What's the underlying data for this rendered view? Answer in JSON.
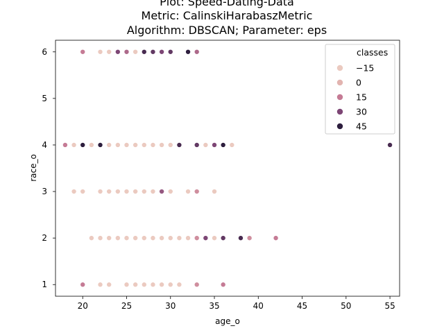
{
  "chart_data": {
    "type": "scatter",
    "title_lines": [
      "Plot: Speed-Dating-Data",
      "Metric: CalinskiHarabaszMetric",
      "Algorithm: DBSCAN; Parameter: eps"
    ],
    "xlabel": "age_o",
    "ylabel": "race_o",
    "xlim": [
      16.9,
      56.1
    ],
    "ylim": [
      0.75,
      6.25
    ],
    "xticks": [
      20,
      25,
      30,
      35,
      40,
      45,
      50,
      55
    ],
    "yticks": [
      1,
      2,
      3,
      4,
      5,
      6
    ],
    "grid": false,
    "legend": {
      "title": "classes",
      "placement": "top-right",
      "entries": [
        {
          "label": "−15",
          "value": -15,
          "color": "#ebcac0"
        },
        {
          "label": "0",
          "value": 0,
          "color": "#e2b4b0"
        },
        {
          "label": "15",
          "value": 15,
          "color": "#c57b95"
        },
        {
          "label": "30",
          "value": 30,
          "color": "#7d4675"
        },
        {
          "label": "45",
          "value": 45,
          "color": "#2d1e3e"
        }
      ]
    },
    "points": [
      {
        "x": 20,
        "y": 6,
        "c": 15
      },
      {
        "x": 22,
        "y": 6,
        "c": -15
      },
      {
        "x": 23,
        "y": 6,
        "c": -15
      },
      {
        "x": 24,
        "y": 6,
        "c": 30
      },
      {
        "x": 25,
        "y": 6,
        "c": 20
      },
      {
        "x": 26,
        "y": 6,
        "c": -15
      },
      {
        "x": 27,
        "y": 6,
        "c": 40
      },
      {
        "x": 28,
        "y": 6,
        "c": 35
      },
      {
        "x": 29,
        "y": 6,
        "c": 30
      },
      {
        "x": 30,
        "y": 6,
        "c": 35
      },
      {
        "x": 32,
        "y": 6,
        "c": 45
      },
      {
        "x": 33,
        "y": 6,
        "c": 20
      },
      {
        "x": 18,
        "y": 4,
        "c": 15
      },
      {
        "x": 19,
        "y": 4,
        "c": -15
      },
      {
        "x": 20,
        "y": 4,
        "c": 45
      },
      {
        "x": 21,
        "y": 4,
        "c": -15
      },
      {
        "x": 22,
        "y": 4,
        "c": 45
      },
      {
        "x": 23,
        "y": 4,
        "c": -15
      },
      {
        "x": 24,
        "y": 4,
        "c": -15
      },
      {
        "x": 25,
        "y": 4,
        "c": -15
      },
      {
        "x": 26,
        "y": 4,
        "c": -15
      },
      {
        "x": 27,
        "y": 4,
        "c": -15
      },
      {
        "x": 28,
        "y": 4,
        "c": -15
      },
      {
        "x": 29,
        "y": 4,
        "c": -15
      },
      {
        "x": 30,
        "y": 4,
        "c": -15
      },
      {
        "x": 31,
        "y": 4,
        "c": 40
      },
      {
        "x": 33,
        "y": 4,
        "c": 35
      },
      {
        "x": 34,
        "y": 4,
        "c": -15
      },
      {
        "x": 35,
        "y": 4,
        "c": 30
      },
      {
        "x": 36,
        "y": 4,
        "c": 45
      },
      {
        "x": 37,
        "y": 4,
        "c": -15
      },
      {
        "x": 55,
        "y": 4,
        "c": 40
      },
      {
        "x": 19,
        "y": 3,
        "c": -15
      },
      {
        "x": 20,
        "y": 3,
        "c": -15
      },
      {
        "x": 22,
        "y": 3,
        "c": -15
      },
      {
        "x": 23,
        "y": 3,
        "c": -15
      },
      {
        "x": 24,
        "y": 3,
        "c": -15
      },
      {
        "x": 25,
        "y": 3,
        "c": -15
      },
      {
        "x": 26,
        "y": 3,
        "c": -15
      },
      {
        "x": 27,
        "y": 3,
        "c": -15
      },
      {
        "x": 28,
        "y": 3,
        "c": -15
      },
      {
        "x": 29,
        "y": 3,
        "c": 25
      },
      {
        "x": 30,
        "y": 3,
        "c": -15
      },
      {
        "x": 32,
        "y": 3,
        "c": -15
      },
      {
        "x": 33,
        "y": 3,
        "c": 10
      },
      {
        "x": 35,
        "y": 3,
        "c": -15
      },
      {
        "x": 21,
        "y": 2,
        "c": -15
      },
      {
        "x": 22,
        "y": 2,
        "c": -15
      },
      {
        "x": 23,
        "y": 2,
        "c": -15
      },
      {
        "x": 24,
        "y": 2,
        "c": -15
      },
      {
        "x": 25,
        "y": 2,
        "c": -15
      },
      {
        "x": 26,
        "y": 2,
        "c": -15
      },
      {
        "x": 27,
        "y": 2,
        "c": -15
      },
      {
        "x": 28,
        "y": 2,
        "c": -15
      },
      {
        "x": 29,
        "y": 2,
        "c": -15
      },
      {
        "x": 30,
        "y": 2,
        "c": -15
      },
      {
        "x": 31,
        "y": 2,
        "c": -15
      },
      {
        "x": 32,
        "y": 2,
        "c": -15
      },
      {
        "x": 33,
        "y": 2,
        "c": 10
      },
      {
        "x": 34,
        "y": 2,
        "c": 30
      },
      {
        "x": 35,
        "y": 2,
        "c": -15
      },
      {
        "x": 36,
        "y": 2,
        "c": 35
      },
      {
        "x": 38,
        "y": 2,
        "c": 40
      },
      {
        "x": 39,
        "y": 2,
        "c": 10
      },
      {
        "x": 42,
        "y": 2,
        "c": 15
      },
      {
        "x": 20,
        "y": 1,
        "c": 15
      },
      {
        "x": 22,
        "y": 1,
        "c": -15
      },
      {
        "x": 23,
        "y": 1,
        "c": -15
      },
      {
        "x": 25,
        "y": 1,
        "c": -15
      },
      {
        "x": 26,
        "y": 1,
        "c": -15
      },
      {
        "x": 27,
        "y": 1,
        "c": -15
      },
      {
        "x": 28,
        "y": 1,
        "c": -15
      },
      {
        "x": 29,
        "y": 1,
        "c": -15
      },
      {
        "x": 30,
        "y": 1,
        "c": -15
      },
      {
        "x": 31,
        "y": 1,
        "c": -15
      },
      {
        "x": 33,
        "y": 1,
        "c": 10
      },
      {
        "x": 36,
        "y": 1,
        "c": 15
      }
    ]
  }
}
